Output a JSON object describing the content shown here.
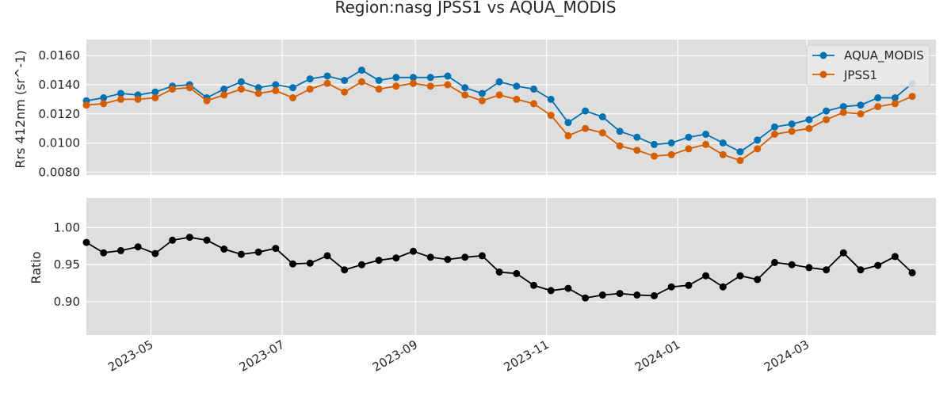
{
  "chart_data": [
    {
      "type": "line",
      "title": "Region:nasg JPSS1 vs AQUA_MODIS",
      "ylabel": "Rrs 412nm (sr^-1)",
      "ylim": [
        0.0078,
        0.0171
      ],
      "xlim": [
        "2023-04-01",
        "2024-04-30"
      ],
      "grid": true,
      "legend_position": "top-right",
      "yticks": [
        "0.0080",
        "0.0100",
        "0.0120",
        "0.0140",
        "0.0160"
      ],
      "ytick_values": [
        0.008,
        0.01,
        0.012,
        0.014,
        0.016
      ],
      "x": [
        "2023-04-01",
        "2023-04-09",
        "2023-04-17",
        "2023-04-25",
        "2023-05-03",
        "2023-05-11",
        "2023-05-19",
        "2023-05-27",
        "2023-06-04",
        "2023-06-12",
        "2023-06-20",
        "2023-06-28",
        "2023-07-06",
        "2023-07-14",
        "2023-07-22",
        "2023-07-30",
        "2023-08-07",
        "2023-08-15",
        "2023-08-23",
        "2023-08-31",
        "2023-09-08",
        "2023-09-16",
        "2023-09-24",
        "2023-10-02",
        "2023-10-10",
        "2023-10-18",
        "2023-10-26",
        "2023-11-03",
        "2023-11-11",
        "2023-11-19",
        "2023-11-27",
        "2023-12-05",
        "2023-12-13",
        "2023-12-21",
        "2023-12-29",
        "2024-01-06",
        "2024-01-14",
        "2024-01-22",
        "2024-01-30",
        "2024-02-07",
        "2024-02-15",
        "2024-02-23",
        "2024-03-02",
        "2024-03-10",
        "2024-03-18",
        "2024-03-26",
        "2024-04-03",
        "2024-04-11",
        "2024-04-19"
      ],
      "series": [
        {
          "name": "AQUA_MODIS",
          "color": "#0072b2",
          "values": [
            0.0129,
            0.0131,
            0.0134,
            0.0133,
            0.0135,
            0.0139,
            0.014,
            0.0131,
            0.0137,
            0.0142,
            0.0138,
            0.014,
            0.0138,
            0.0144,
            0.0146,
            0.0143,
            0.015,
            0.0143,
            0.0145,
            0.0145,
            0.0145,
            0.0146,
            0.0138,
            0.0134,
            0.0142,
            0.0139,
            0.0137,
            0.013,
            0.0114,
            0.0122,
            0.0118,
            0.0108,
            0.0104,
            0.0099,
            0.01,
            0.0104,
            0.0106,
            0.01,
            0.0094,
            0.0102,
            0.0111,
            0.0113,
            0.0116,
            0.0122,
            0.0125,
            0.0126,
            0.0131,
            0.0131,
            0.0141
          ]
        },
        {
          "name": "JPSS1",
          "color": "#d55e00",
          "values": [
            0.0126,
            0.0127,
            0.013,
            0.013,
            0.0131,
            0.0137,
            0.0138,
            0.0129,
            0.0133,
            0.0137,
            0.0134,
            0.0136,
            0.0131,
            0.0137,
            0.0141,
            0.0135,
            0.0142,
            0.0137,
            0.0139,
            0.0141,
            0.0139,
            0.014,
            0.0133,
            0.0129,
            0.0133,
            0.013,
            0.0127,
            0.0119,
            0.0105,
            0.011,
            0.0107,
            0.0098,
            0.0095,
            0.0091,
            0.0092,
            0.0096,
            0.0099,
            0.0092,
            0.0088,
            0.0096,
            0.0106,
            0.0108,
            0.011,
            0.0116,
            0.0121,
            0.012,
            0.0125,
            0.0127,
            0.0132
          ]
        }
      ]
    },
    {
      "type": "line",
      "ylabel": "Ratio",
      "ylim": [
        0.855,
        1.04
      ],
      "xlim": [
        "2023-04-01",
        "2024-04-30"
      ],
      "grid": true,
      "yticks": [
        "0.90",
        "0.95",
        "1.00"
      ],
      "ytick_values": [
        0.9,
        0.95,
        1.0
      ],
      "xticks": [
        "2023-05",
        "2023-07",
        "2023-09",
        "2023-11",
        "2024-01",
        "2024-03"
      ],
      "xtick_dates": [
        "2023-05-01",
        "2023-07-01",
        "2023-09-01",
        "2023-11-01",
        "2024-01-01",
        "2024-03-01"
      ],
      "x": [
        "2023-04-01",
        "2023-04-09",
        "2023-04-17",
        "2023-04-25",
        "2023-05-03",
        "2023-05-11",
        "2023-05-19",
        "2023-05-27",
        "2023-06-04",
        "2023-06-12",
        "2023-06-20",
        "2023-06-28",
        "2023-07-06",
        "2023-07-14",
        "2023-07-22",
        "2023-07-30",
        "2023-08-07",
        "2023-08-15",
        "2023-08-23",
        "2023-08-31",
        "2023-09-08",
        "2023-09-16",
        "2023-09-24",
        "2023-10-02",
        "2023-10-10",
        "2023-10-18",
        "2023-10-26",
        "2023-11-03",
        "2023-11-11",
        "2023-11-19",
        "2023-11-27",
        "2023-12-05",
        "2023-12-13",
        "2023-12-21",
        "2023-12-29",
        "2024-01-06",
        "2024-01-14",
        "2024-01-22",
        "2024-01-30",
        "2024-02-07",
        "2024-02-15",
        "2024-02-23",
        "2024-03-02",
        "2024-03-10",
        "2024-03-18",
        "2024-03-26",
        "2024-04-03",
        "2024-04-11",
        "2024-04-19"
      ],
      "series": [
        {
          "color": "#000000",
          "values": [
            0.98,
            0.966,
            0.969,
            0.974,
            0.965,
            0.983,
            0.987,
            0.983,
            0.971,
            0.964,
            0.967,
            0.972,
            0.951,
            0.952,
            0.962,
            0.943,
            0.95,
            0.956,
            0.959,
            0.968,
            0.96,
            0.957,
            0.96,
            0.962,
            0.94,
            0.938,
            0.922,
            0.915,
            0.918,
            0.905,
            0.909,
            0.911,
            0.909,
            0.908,
            0.92,
            0.922,
            0.935,
            0.92,
            0.935,
            0.93,
            0.953,
            0.95,
            0.946,
            0.943,
            0.966,
            0.943,
            0.949,
            0.961,
            0.939
          ]
        }
      ]
    }
  ]
}
